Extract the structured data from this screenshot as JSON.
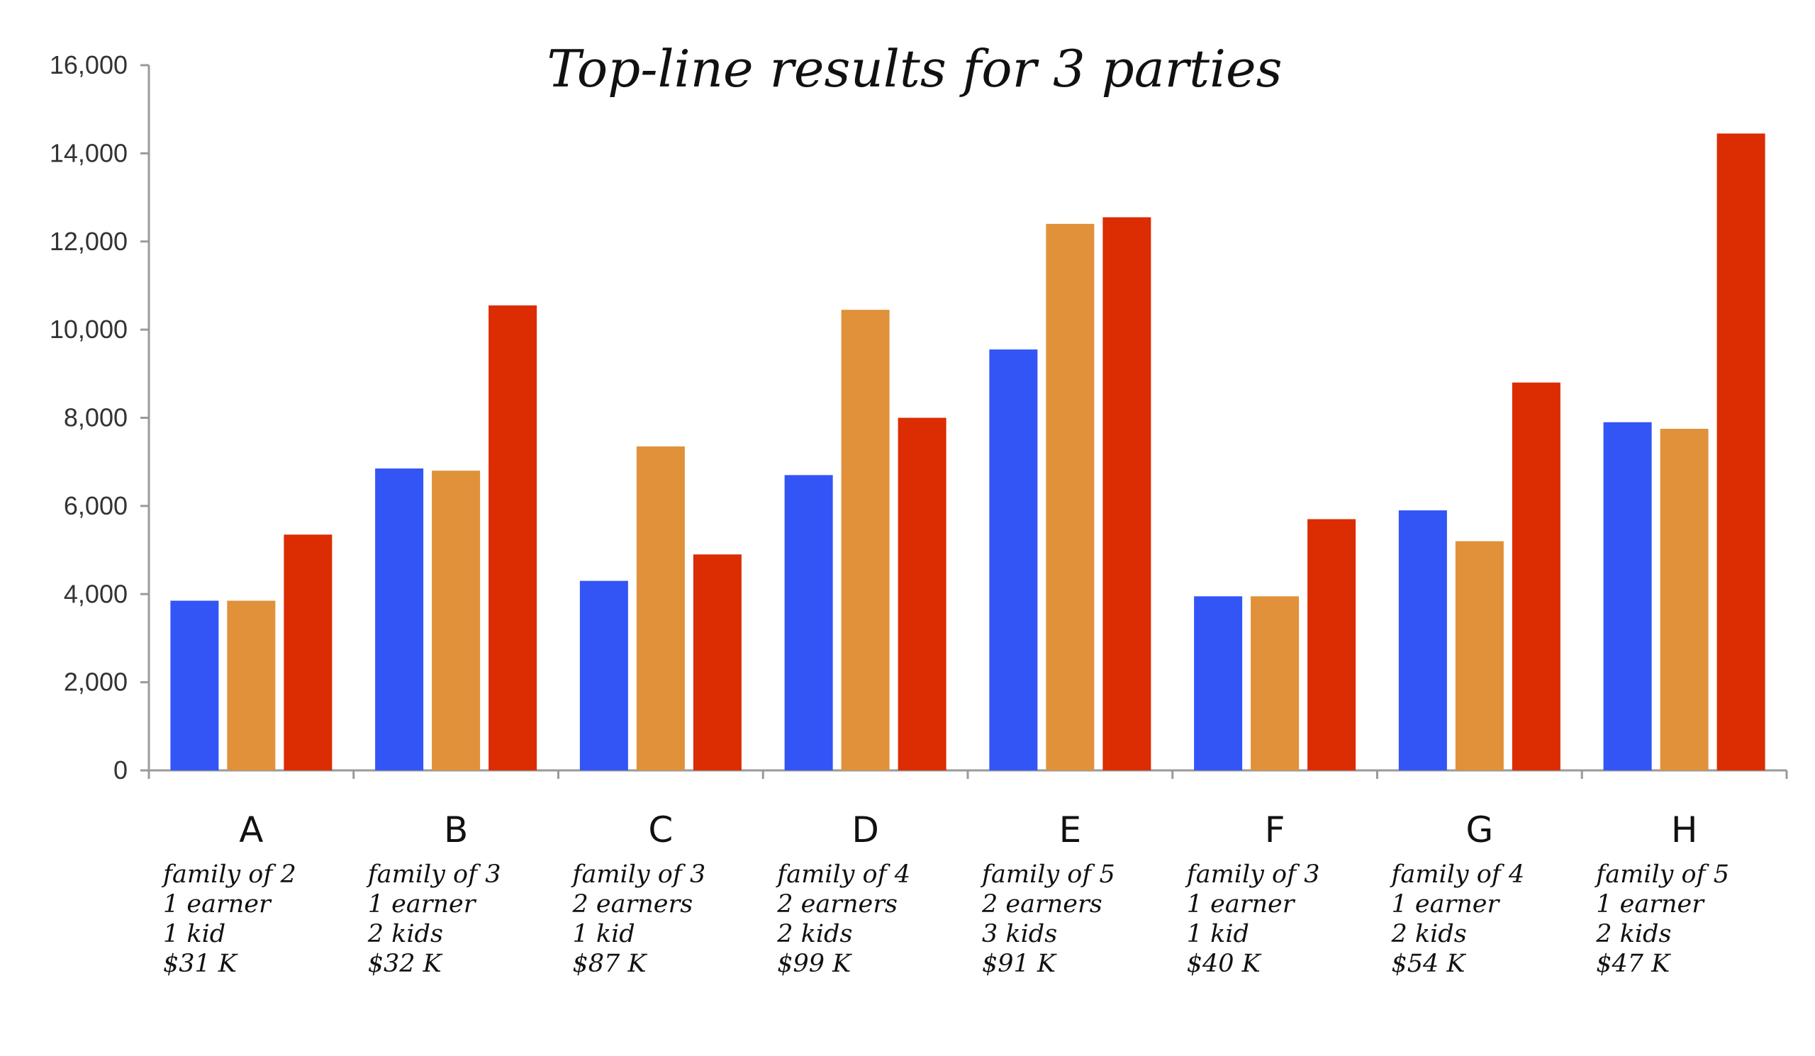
{
  "chart_data": {
    "type": "bar",
    "title": "Top-line results for 3 parties",
    "xlabel": "",
    "ylabel": "",
    "ylim": [
      0,
      16000
    ],
    "yticks": [
      0,
      2000,
      4000,
      6000,
      8000,
      10000,
      12000,
      14000,
      16000
    ],
    "ytick_labels": [
      "0",
      "2,000",
      "4,000",
      "6,000",
      "8,000",
      "10,000",
      "12,000",
      "14,000",
      "16,000"
    ],
    "grid": false,
    "legend": "none",
    "categories": [
      "A",
      "B",
      "C",
      "D",
      "E",
      "F",
      "G",
      "H"
    ],
    "category_descriptions": [
      [
        "family of 2",
        "1 earner",
        "1 kid",
        "$31 K"
      ],
      [
        "family of 3",
        "1 earner",
        "2 kids",
        "$32 K"
      ],
      [
        "family of 3",
        "2 earners",
        "1 kid",
        "$87 K"
      ],
      [
        "family of 4",
        "2 earners",
        "2 kids",
        "$99 K"
      ],
      [
        "family of 5",
        "2 earners",
        "3 kids",
        "$91 K"
      ],
      [
        "family of 3",
        "1 earner",
        "1 kid",
        "$40 K"
      ],
      [
        "family of 4",
        "1 earner",
        "2 kids",
        "$54 K"
      ],
      [
        "family of 5",
        "1 earner",
        "2 kids",
        "$47 K"
      ]
    ],
    "series": [
      {
        "color": "#3355f5",
        "values": [
          3850,
          6850,
          4300,
          6700,
          9550,
          3950,
          5900,
          7900
        ]
      },
      {
        "color": "#e0913a",
        "values": [
          3850,
          6800,
          7350,
          10450,
          12400,
          3950,
          5200,
          7750
        ]
      },
      {
        "color": "#db2c02",
        "values": [
          5350,
          10550,
          4900,
          8000,
          12550,
          5700,
          8800,
          14450
        ]
      }
    ]
  }
}
